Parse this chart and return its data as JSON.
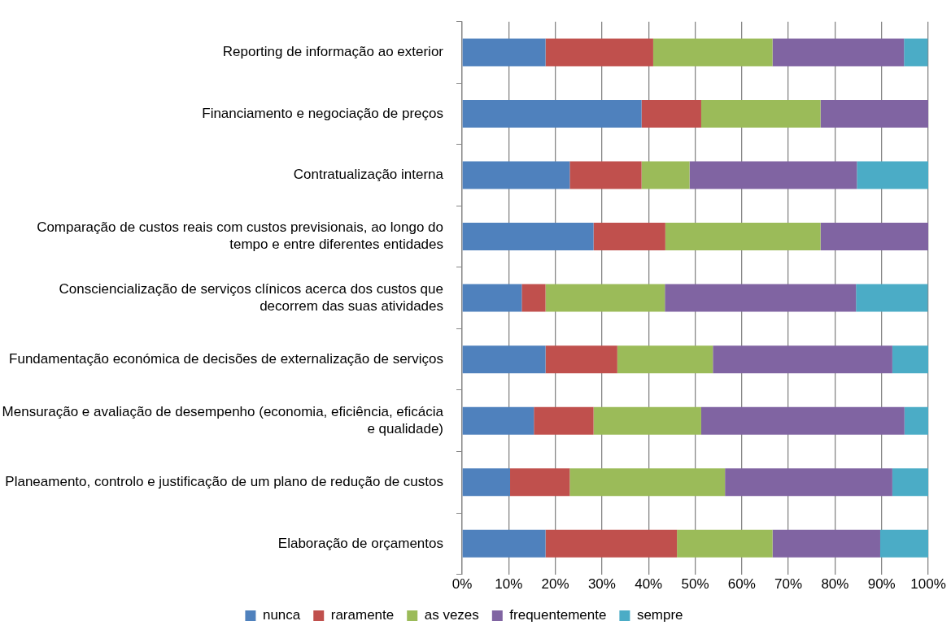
{
  "chart_data": {
    "type": "bar",
    "orientation": "horizontal",
    "stacked": true,
    "categories": [
      "Reporting de informação ao exterior",
      "Financiamento e negociação de preços",
      "Contratualização interna",
      "Comparação de custos reais com custos previsionais, ao longo do tempo e entre diferentes entidades",
      "Consciencialização de serviços clínicos acerca dos custos que decorrem das suas atividades",
      "Fundamentação económica de decisões de externalização de serviços",
      "Mensuração e avaliação de desempenho (economia, eficiência, eficácia e qualidade)",
      "Planeamento, controlo e justificação de um plano de redução de custos",
      "Elaboração de orçamentos"
    ],
    "series": [
      {
        "name": "nunca",
        "color": "#4f81bd",
        "values": [
          17.9,
          38.5,
          23.1,
          28.2,
          12.8,
          17.9,
          15.4,
          10.3,
          17.9
        ]
      },
      {
        "name": "raramente",
        "color": "#c0504d",
        "values": [
          23.1,
          12.8,
          15.4,
          15.4,
          5.1,
          15.4,
          12.8,
          12.8,
          28.2
        ]
      },
      {
        "name": "as vezes",
        "color": "#9bbb59",
        "values": [
          25.6,
          25.6,
          10.3,
          33.3,
          25.6,
          20.5,
          23.1,
          33.3,
          20.5
        ]
      },
      {
        "name": "frequentemente",
        "color": "#8064a2",
        "values": [
          28.2,
          23.1,
          35.9,
          23.1,
          41.0,
          38.5,
          43.6,
          35.9,
          23.1
        ]
      },
      {
        "name": "sempre",
        "color": "#4bacc6",
        "values": [
          5.1,
          0,
          15.4,
          0,
          15.4,
          7.7,
          5.1,
          7.7,
          10.3
        ]
      }
    ],
    "xlim": [
      0,
      100
    ],
    "xticks": [
      {
        "value": 0,
        "label": "0%"
      },
      {
        "value": 10,
        "label": "10%"
      },
      {
        "value": 20,
        "label": "20%"
      },
      {
        "value": 30,
        "label": "30%"
      },
      {
        "value": 40,
        "label": "40%"
      },
      {
        "value": 50,
        "label": "50%"
      },
      {
        "value": 60,
        "label": "60%"
      },
      {
        "value": 70,
        "label": "70%"
      },
      {
        "value": 80,
        "label": "80%"
      },
      {
        "value": 90,
        "label": "90%"
      },
      {
        "value": 100,
        "label": "100%"
      }
    ],
    "grid": "x",
    "legend": "bottom"
  }
}
